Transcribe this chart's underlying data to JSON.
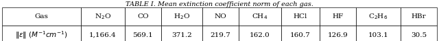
{
  "title": "TABLE I. Mean extinction coefficient norm of each gas.",
  "col_headers": [
    "Gas",
    "N$_2$O",
    "CO",
    "H$_2$O",
    "NO",
    "CH$_4$",
    "HCl",
    "HF",
    "C$_2$H$_6$",
    "HBr"
  ],
  "row_label": "$\\|\\epsilon\\|$ $(M^{-1}cm^{-1})$",
  "row_values": [
    "1,166.4",
    "569.1",
    "371.2",
    "219.7",
    "162.0",
    "160.7",
    "126.9",
    "103.1",
    "30.5"
  ],
  "background_color": "#ffffff",
  "border_color": "#000000",
  "title_fontsize": 7.0,
  "cell_fontsize": 7.5
}
